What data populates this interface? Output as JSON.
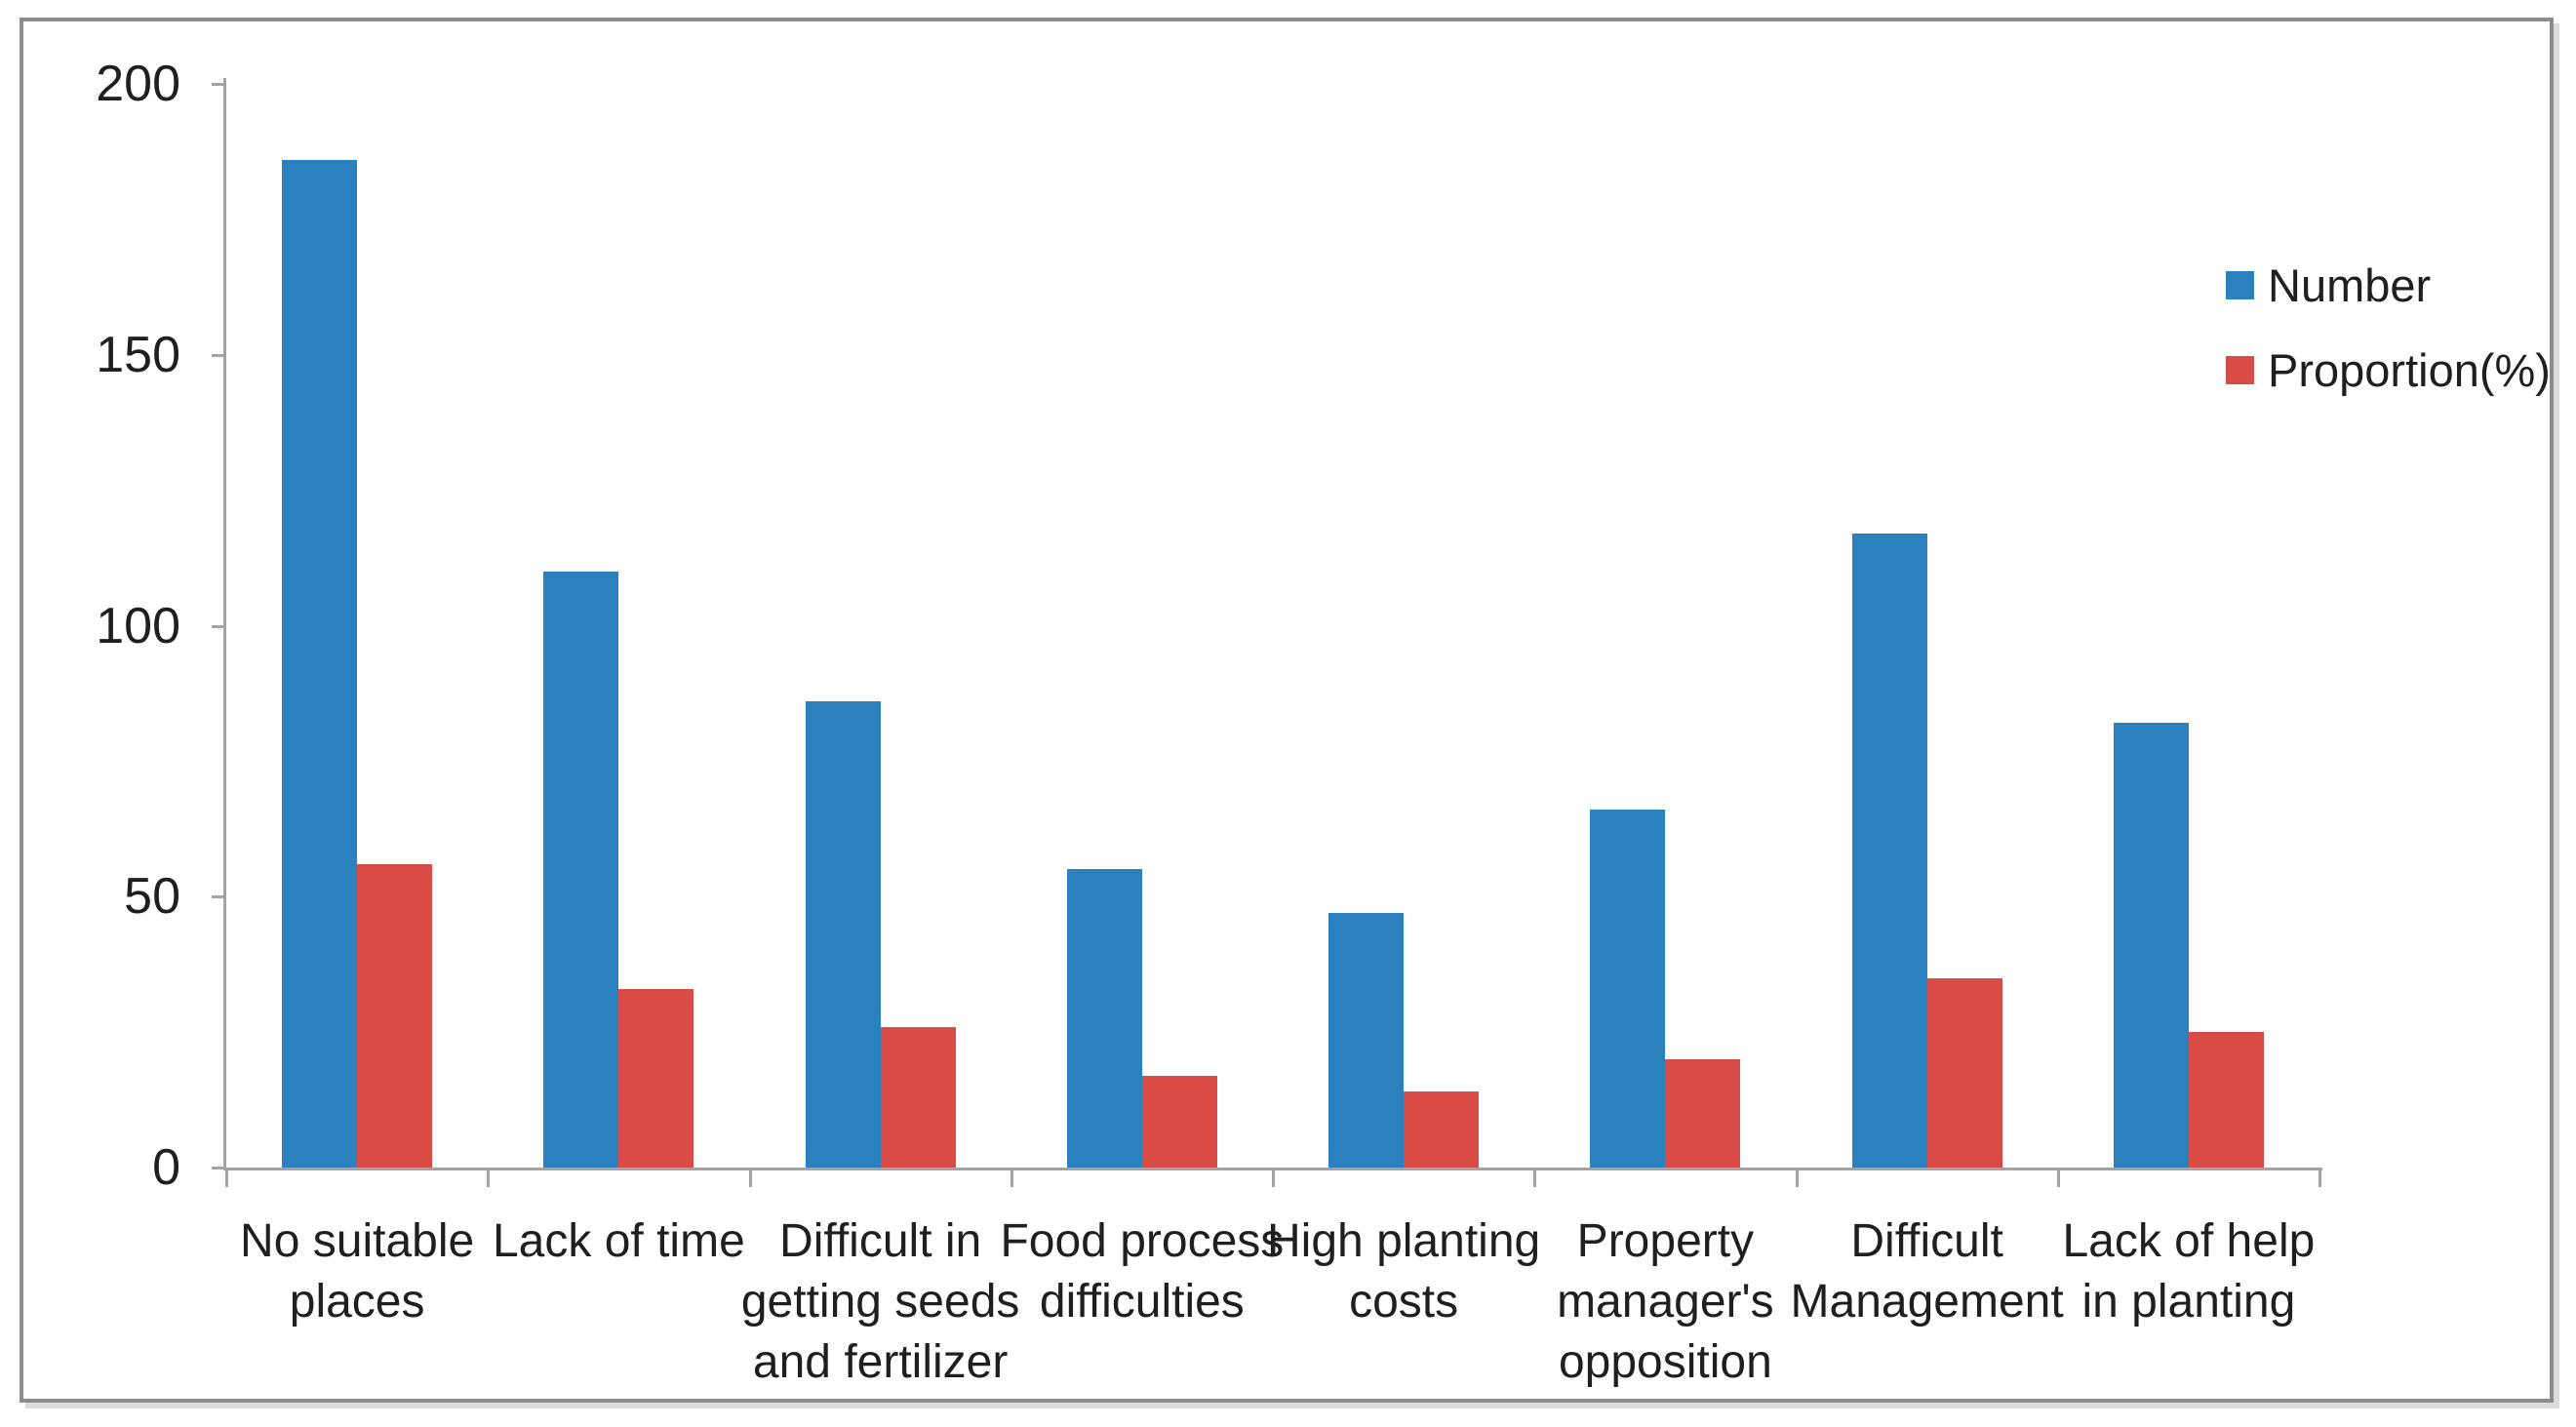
{
  "chart_data": {
    "type": "bar",
    "title": "",
    "xlabel": "",
    "ylabel": "",
    "categories": [
      "No suitable\nplaces",
      "Lack of time",
      "Difficult in\ngetting seeds\nand fertilizer",
      "Food process\ndifficulties",
      "High planting\ncosts",
      "Property\nmanager's\nopposition",
      "Difficult\nManagement",
      "Lack of help\nin planting"
    ],
    "series": [
      {
        "name": "Number",
        "color": "#2b80be",
        "values": [
          186,
          110,
          86,
          55,
          47,
          66,
          117,
          82
        ]
      },
      {
        "name": "Proportion(%)",
        "color": "#d94b46",
        "values": [
          56,
          33,
          26,
          17,
          14,
          20,
          35,
          25
        ]
      }
    ],
    "ylim": [
      0,
      200
    ],
    "yticks": [
      0,
      50,
      100,
      150,
      200
    ],
    "grid": false,
    "legend_position": "right-top",
    "axis_color": "#a3a3a3",
    "text_color": "#1f1f1f",
    "frame_color": "#8c8c8c"
  }
}
